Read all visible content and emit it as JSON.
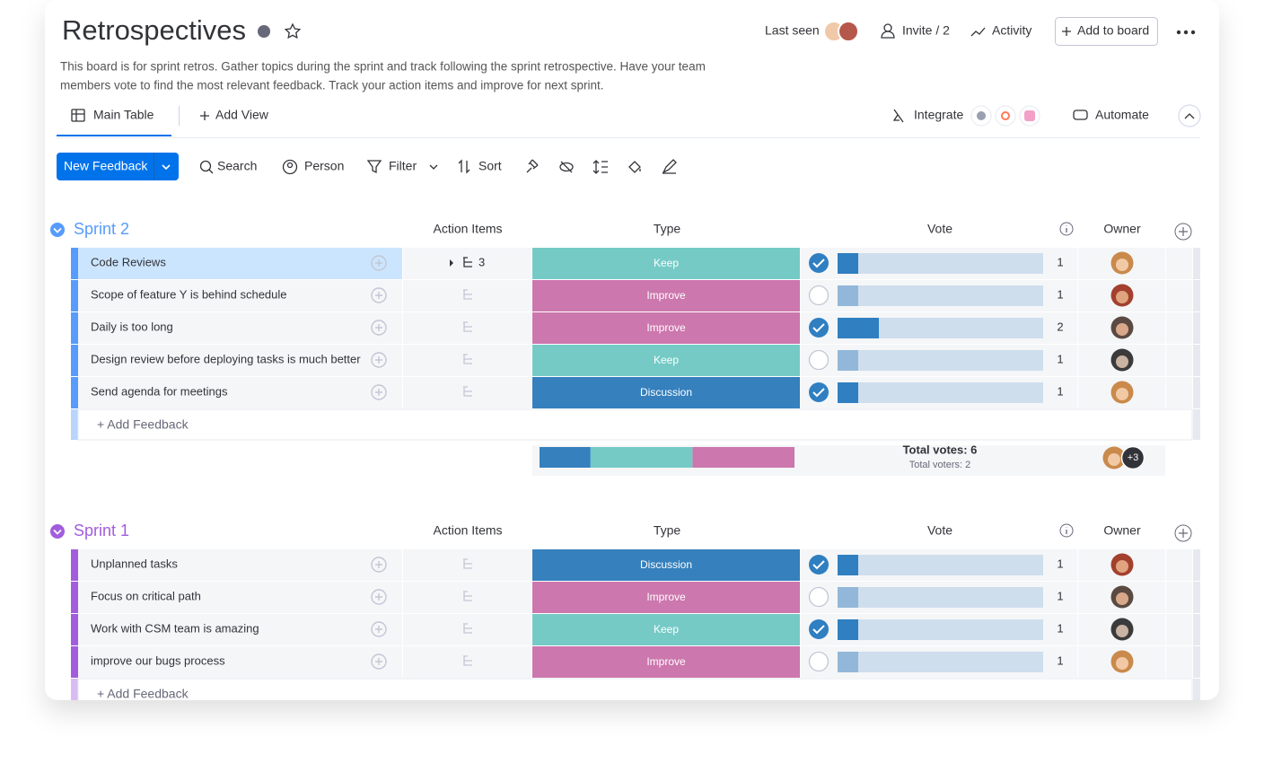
{
  "header": {
    "title": "Retrospectives",
    "last_seen": "Last seen",
    "invite": "Invite / 2",
    "activity": "Activity",
    "add_to_board": "Add to board",
    "description": [
      "This board is for sprint retros. Gather topics during the sprint and track following the sprint retrospective. Have your team",
      "members vote to find the most relevant feedback. Track your action items and improve for next sprint."
    ]
  },
  "views": {
    "main_table": "Main Table",
    "add_view": "Add View",
    "integrate": "Integrate",
    "automate": "Automate"
  },
  "toolbar": {
    "new_item": "New Feedback",
    "search": "Search",
    "person": "Person",
    "filter": "Filter",
    "sort": "Sort"
  },
  "type_colors": {
    "Keep": "#75cac6",
    "Improve": "#cc77ad",
    "Discussion": "#3580bd"
  },
  "groups": [
    {
      "name": "Sprint 2",
      "color": "#579bfc",
      "columns": [
        "Action Items",
        "Type",
        "Vote",
        "Owner"
      ],
      "rows": [
        {
          "name": "Code Reviews",
          "subitems": 3,
          "type": "Keep",
          "voted": true,
          "votes": 1
        },
        {
          "name": "Scope of feature Y is behind schedule",
          "type": "Improve",
          "voted": false,
          "votes": 1
        },
        {
          "name": "Daily is too long",
          "type": "Improve",
          "voted": true,
          "votes": 2
        },
        {
          "name": "Design review before deploying tasks is much better",
          "type": "Keep",
          "voted": false,
          "votes": 1
        },
        {
          "name": "Send agenda for meetings",
          "type": "Discussion",
          "voted": true,
          "votes": 1
        }
      ],
      "add_item": "+ Add Feedback",
      "summary": {
        "total_votes": "Total votes: 6",
        "total_voters": "Total voters: 2",
        "extra_owners": "+3"
      }
    },
    {
      "name": "Sprint 1",
      "color": "#a25ddc",
      "columns": [
        "Action Items",
        "Type",
        "Vote",
        "Owner"
      ],
      "rows": [
        {
          "name": "Unplanned tasks",
          "type": "Discussion",
          "voted": true,
          "votes": 1
        },
        {
          "name": "Focus on critical path",
          "type": "Improve",
          "voted": false,
          "votes": 1
        },
        {
          "name": "Work with CSM team is amazing",
          "type": "Keep",
          "voted": true,
          "votes": 1
        },
        {
          "name": "improve our bugs process",
          "type": "Improve",
          "voted": false,
          "votes": 1
        }
      ],
      "add_item": "+ Add Feedback"
    }
  ]
}
